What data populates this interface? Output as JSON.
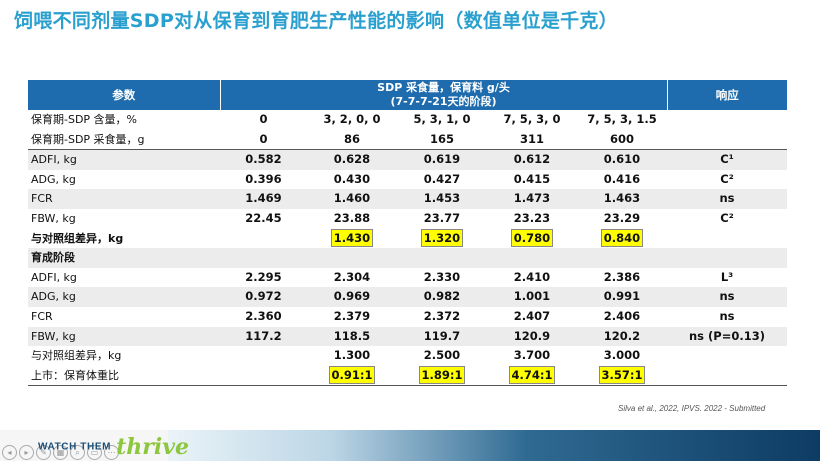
{
  "title": "饲喂不同剂量SDP对从保育到育肥生产性能的影响（数值单位是千克）",
  "table": {
    "head": {
      "param": "参数",
      "dose_line1": "SDP 采食量，保育料 g/头",
      "dose_line2": "(7-7-7-21天的阶段)",
      "response": "响应"
    },
    "rows": [
      {
        "label": "保育期-SDP 含量，%",
        "values": [
          "0",
          "3, 2, 0, 0",
          "5, 3, 1, 0",
          "7, 5, 3, 0",
          "7, 5, 3, 1.5"
        ],
        "resp": ""
      },
      {
        "label": "保育期-SDP 采食量，g",
        "values": [
          "0",
          "86",
          "165",
          "311",
          "600"
        ],
        "resp": ""
      },
      {
        "label": "ADFI, kg",
        "values": [
          "0.582",
          "0.628",
          "0.619",
          "0.612",
          "0.610"
        ],
        "resp": "C¹"
      },
      {
        "label": "ADG, kg",
        "values": [
          "0.396",
          "0.430",
          "0.427",
          "0.415",
          "0.416"
        ],
        "resp": "C²"
      },
      {
        "label": "FCR",
        "values": [
          "1.469",
          "1.460",
          "1.453",
          "1.473",
          "1.463"
        ],
        "resp": "ns"
      },
      {
        "label": "FBW, kg",
        "values": [
          "22.45",
          "23.88",
          "23.77",
          "23.23",
          "23.29"
        ],
        "resp": "C²"
      },
      {
        "label": "与对照组差异，kg",
        "values": [
          "",
          "1.430",
          "1.320",
          "0.780",
          "0.840"
        ],
        "resp": ""
      },
      {
        "label": "育成阶段",
        "values": [
          "",
          "",
          "",
          "",
          ""
        ],
        "resp": ""
      },
      {
        "label": "ADFI, kg",
        "values": [
          "2.295",
          "2.304",
          "2.330",
          "2.410",
          "2.386"
        ],
        "resp": "L³"
      },
      {
        "label": "ADG, kg",
        "values": [
          "0.972",
          "0.969",
          "0.982",
          "1.001",
          "0.991"
        ],
        "resp": "ns"
      },
      {
        "label": "FCR",
        "values": [
          "2.360",
          "2.379",
          "2.372",
          "2.407",
          "2.406"
        ],
        "resp": "ns"
      },
      {
        "label": "FBW, kg",
        "values": [
          "117.2",
          "118.5",
          "119.7",
          "120.9",
          "120.2"
        ],
        "resp": "ns  (P=0.13)"
      },
      {
        "label": "与对照组差异，kg",
        "values": [
          "",
          "1.300",
          "2.500",
          "3.700",
          "3.000"
        ],
        "resp": ""
      },
      {
        "label": "上市：保育体重比",
        "values": [
          "",
          "0.91:1",
          "1.89:1",
          "4.74:1",
          "3.57:1"
        ],
        "resp": ""
      }
    ]
  },
  "citation": "Silva et al., 2022, IPVS. 2022 - Submitted",
  "footer": {
    "brand_watch": "WATCH THEM",
    "brand_thrive": "thrive"
  },
  "colors": {
    "title": "#2aa0cf",
    "header_bg": "#1e6cad",
    "highlight": "#ffff00",
    "thrive_green": "#8dc63f"
  },
  "icons": [
    "circle-nav-icon",
    "circle-nav-icon",
    "circle-nav-icon",
    "circle-nav-icon",
    "circle-nav-icon",
    "circle-nav-icon",
    "circle-nav-icon"
  ]
}
